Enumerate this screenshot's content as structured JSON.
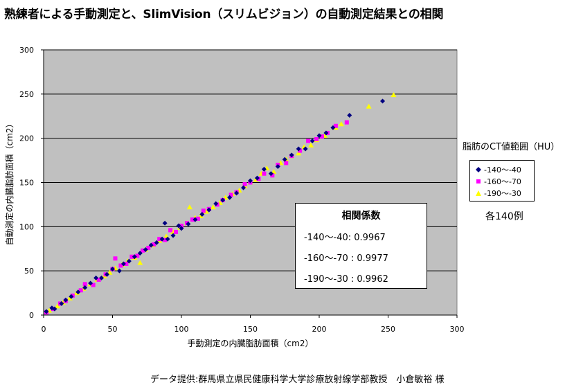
{
  "title": "熟練者による手動測定と、SlimVision（スリムビジョン）の自動測定結果との相関",
  "chart_data": {
    "type": "scatter",
    "title": "熟練者による手動測定と、SlimVision（スリムビジョン）の自動測定結果との相関",
    "xlabel": "手動測定の内臓脂肪面積（cm2）",
    "ylabel": "自動測定の内臓脂肪面積（cm2）",
    "xlim": [
      0,
      300
    ],
    "ylim": [
      0,
      300
    ],
    "x_ticks": [
      "0",
      "50",
      "100",
      "150",
      "200",
      "250",
      "300"
    ],
    "y_ticks": [
      "0",
      "50",
      "100",
      "150",
      "200",
      "250",
      "300"
    ],
    "grid": "horizontal",
    "plot_background": "#c0c0c0",
    "legend_title": "脂肪のCT値範囲（HU）",
    "legend_position": "right",
    "legend_note": "各140例",
    "series": [
      {
        "name": "-140〜-40",
        "color": "#000080",
        "marker": "diamond",
        "x": [
          2,
          6,
          8,
          13,
          16,
          20,
          25,
          30,
          34,
          38,
          42,
          46,
          50,
          55,
          58,
          62,
          66,
          70,
          74,
          78,
          82,
          86,
          88,
          90,
          94,
          98,
          100,
          105,
          110,
          115,
          120,
          125,
          130,
          135,
          140,
          145,
          150,
          155,
          160,
          165,
          170,
          175,
          180,
          185,
          190,
          195,
          200,
          205,
          210,
          222,
          246
        ],
        "y": [
          4,
          8,
          7,
          13,
          17,
          21,
          26,
          31,
          36,
          42,
          42,
          46,
          52,
          50,
          58,
          61,
          66,
          70,
          74,
          79,
          82,
          86,
          104,
          86,
          90,
          101,
          98,
          103,
          108,
          114,
          119,
          126,
          130,
          133,
          138,
          144,
          152,
          155,
          165,
          160,
          168,
          176,
          181,
          188,
          188,
          197,
          203,
          206,
          212,
          226,
          242
        ]
      },
      {
        "name": "-160〜-70",
        "color": "#ff00ff",
        "marker": "square",
        "x": [
          2,
          7,
          12,
          16,
          21,
          27,
          30,
          36,
          40,
          45,
          50,
          52,
          56,
          60,
          64,
          68,
          72,
          76,
          80,
          84,
          88,
          92,
          96,
          100,
          104,
          108,
          112,
          116,
          120,
          126,
          130,
          136,
          140,
          146,
          150,
          156,
          160,
          166,
          170,
          176,
          180,
          186,
          192,
          198,
          202,
          206,
          212,
          220
        ],
        "y": [
          3,
          7,
          13,
          16,
          22,
          28,
          35,
          34,
          40,
          46,
          52,
          64,
          56,
          58,
          66,
          67,
          73,
          76,
          80,
          86,
          85,
          96,
          94,
          101,
          104,
          108,
          109,
          118,
          120,
          125,
          130,
          136,
          139,
          148,
          150,
          154,
          160,
          158,
          170,
          172,
          180,
          186,
          197,
          199,
          202,
          206,
          214,
          218
        ]
      },
      {
        "name": "-190〜-30",
        "color": "#ffff00",
        "marker": "triangle",
        "x": [
          4,
          10,
          14,
          19,
          24,
          29,
          34,
          39,
          44,
          48,
          52,
          57,
          61,
          66,
          70,
          74,
          79,
          84,
          89,
          94,
          99,
          104,
          106,
          110,
          114,
          118,
          123,
          128,
          132,
          137,
          142,
          146,
          150,
          154,
          158,
          162,
          167,
          172,
          176,
          180,
          185,
          189,
          194,
          198,
          204,
          212,
          216,
          236,
          254
        ],
        "y": [
          5,
          10,
          14,
          19,
          25,
          30,
          35,
          40,
          44,
          48,
          53,
          57,
          61,
          65,
          59,
          74,
          79,
          84,
          89,
          94,
          99,
          104,
          122,
          110,
          112,
          117,
          122,
          127,
          133,
          137,
          141,
          146,
          150,
          153,
          160,
          166,
          162,
          172,
          176,
          180,
          183,
          190,
          192,
          198,
          203,
          212,
          216,
          236,
          249
        ]
      }
    ],
    "annotation": {
      "title": "相関係数",
      "lines": [
        "-140〜-40:  0.9967",
        "-160〜-70 :  0.9977",
        "-190〜-30 :  0.9962"
      ]
    }
  },
  "source_note": "データ提供:群馬県立県民健康科学大学診療放射線学部教授　小倉敏裕 様"
}
